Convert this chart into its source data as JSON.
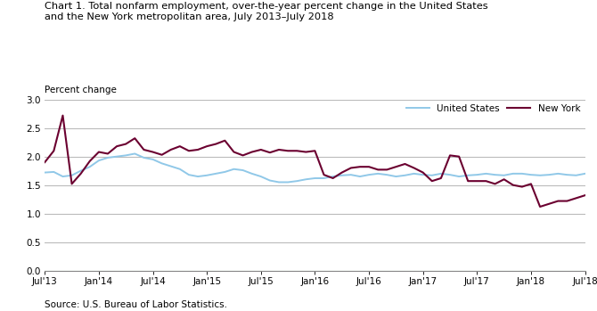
{
  "title": "Chart 1. Total nonfarm employment, over-the-year percent change in the United States\nand the New York metropolitan area, July 2013–July 2018",
  "ylabel": "Percent change",
  "source": "Source: U.S. Bureau of Labor Statistics.",
  "legend_labels": [
    "United States",
    "New York"
  ],
  "us_color": "#90C8E8",
  "ny_color": "#6B0030",
  "background_color": "#ffffff",
  "grid_color": "#bbbbbb",
  "grid_green_color": "#90C890",
  "ylim": [
    0.0,
    3.0
  ],
  "yticks": [
    0.0,
    0.5,
    1.0,
    1.5,
    2.0,
    2.5,
    3.0
  ],
  "xtick_labels": [
    "Jul'13",
    "Jan'14",
    "Jul'14",
    "Jan'15",
    "Jul'15",
    "Jan'16",
    "Jul'16",
    "Jan'17",
    "Jul'17",
    "Jan'18",
    "Jul'18"
  ],
  "xtick_positions": [
    0,
    6,
    12,
    18,
    24,
    30,
    36,
    42,
    48,
    54,
    60
  ],
  "us_data": [
    1.72,
    1.73,
    1.65,
    1.67,
    1.75,
    1.82,
    1.93,
    1.98,
    2.0,
    2.02,
    2.05,
    1.98,
    1.95,
    1.88,
    1.83,
    1.78,
    1.68,
    1.65,
    1.67,
    1.7,
    1.73,
    1.78,
    1.76,
    1.7,
    1.65,
    1.58,
    1.55,
    1.55,
    1.57,
    1.6,
    1.62,
    1.62,
    1.65,
    1.67,
    1.68,
    1.65,
    1.68,
    1.7,
    1.68,
    1.65,
    1.67,
    1.7,
    1.68,
    1.67,
    1.7,
    1.68,
    1.65,
    1.67,
    1.68,
    1.7,
    1.68,
    1.67,
    1.7,
    1.7,
    1.68,
    1.67,
    1.68,
    1.7,
    1.68,
    1.67,
    1.7
  ],
  "ny_data": [
    1.9,
    2.1,
    2.72,
    1.52,
    1.7,
    1.92,
    2.08,
    2.05,
    2.18,
    2.22,
    2.32,
    2.12,
    2.08,
    2.03,
    2.12,
    2.18,
    2.1,
    2.12,
    2.18,
    2.22,
    2.28,
    2.08,
    2.02,
    2.08,
    2.12,
    2.07,
    2.12,
    2.1,
    2.1,
    2.08,
    2.1,
    1.68,
    1.62,
    1.72,
    1.8,
    1.82,
    1.82,
    1.77,
    1.77,
    1.82,
    1.87,
    1.8,
    1.72,
    1.57,
    1.62,
    2.02,
    2.0,
    1.57,
    1.57,
    1.57,
    1.52,
    1.6,
    1.5,
    1.47,
    1.52,
    1.12,
    1.17,
    1.22,
    1.22,
    1.27,
    1.32
  ]
}
